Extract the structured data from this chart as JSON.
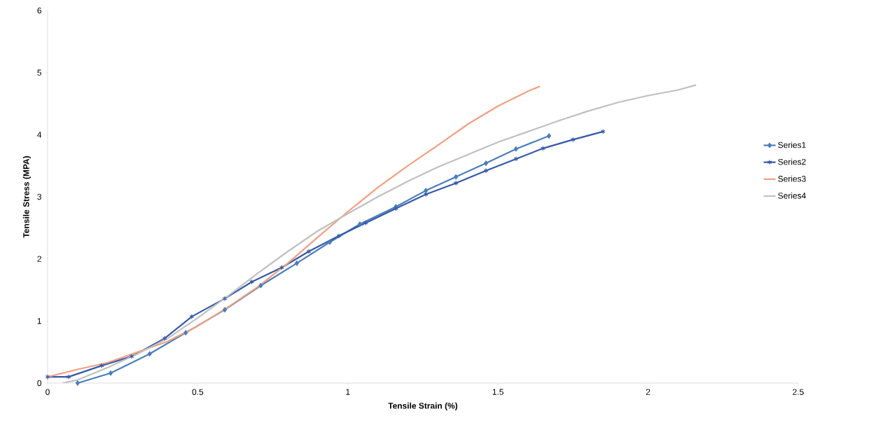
{
  "chart_data": {
    "type": "line",
    "xlabel": "Tensile Strain (%)",
    "ylabel": "Tensile Stress (MPA)",
    "xlim": [
      0,
      2.5
    ],
    "ylim": [
      0,
      6
    ],
    "xticks": [
      0,
      0.5,
      1,
      1.5,
      2,
      2.5
    ],
    "yticks": [
      0,
      1,
      2,
      3,
      4,
      5,
      6
    ],
    "grid": false,
    "legend": "right",
    "series": [
      {
        "name": "Series1",
        "color": "#4a7ebb",
        "marker": "diamond",
        "x": [
          0.1,
          0.21,
          0.34,
          0.46,
          0.59,
          0.71,
          0.83,
          0.94,
          1.04,
          1.16,
          1.26,
          1.36,
          1.46,
          1.56,
          1.67
        ],
        "values": [
          0,
          0.16,
          0.47,
          0.81,
          1.18,
          1.57,
          1.93,
          2.27,
          2.56,
          2.84,
          3.1,
          3.32,
          3.54,
          3.77,
          3.98
        ]
      },
      {
        "name": "Series2",
        "color": "#3558a8",
        "marker": "cross",
        "x": [
          0,
          0.07,
          0.18,
          0.28,
          0.39,
          0.48,
          0.59,
          0.68,
          0.78,
          0.87,
          0.97,
          1.06,
          1.16,
          1.26,
          1.36,
          1.46,
          1.56,
          1.65,
          1.75,
          1.85
        ],
        "values": [
          0.1,
          0.1,
          0.28,
          0.43,
          0.72,
          1.07,
          1.36,
          1.63,
          1.86,
          2.12,
          2.37,
          2.58,
          2.81,
          3.04,
          3.22,
          3.42,
          3.61,
          3.78,
          3.92,
          4.05
        ]
      },
      {
        "name": "Series3",
        "color": "#f0a080",
        "marker": "none",
        "x": [
          0,
          0.1,
          0.2,
          0.3,
          0.4,
          0.5,
          0.6,
          0.7,
          0.8,
          0.9,
          1.0,
          1.1,
          1.2,
          1.3,
          1.4,
          1.5,
          1.6,
          1.64
        ],
        "values": [
          0.1,
          0.22,
          0.33,
          0.5,
          0.67,
          0.92,
          1.22,
          1.55,
          1.93,
          2.35,
          2.76,
          3.15,
          3.5,
          3.83,
          4.17,
          4.46,
          4.7,
          4.78
        ]
      },
      {
        "name": "Series4",
        "color": "#c0c0c0",
        "marker": "none",
        "x": [
          0.05,
          0.1,
          0.2,
          0.3,
          0.4,
          0.5,
          0.6,
          0.7,
          0.8,
          0.9,
          1.0,
          1.1,
          1.2,
          1.3,
          1.4,
          1.5,
          1.6,
          1.7,
          1.8,
          1.9,
          2.0,
          2.1,
          2.16
        ],
        "values": [
          0,
          0.05,
          0.25,
          0.47,
          0.72,
          1.05,
          1.4,
          1.77,
          2.12,
          2.45,
          2.73,
          3.0,
          3.25,
          3.48,
          3.68,
          3.88,
          4.05,
          4.22,
          4.38,
          4.52,
          4.63,
          4.72,
          4.8
        ]
      }
    ]
  }
}
